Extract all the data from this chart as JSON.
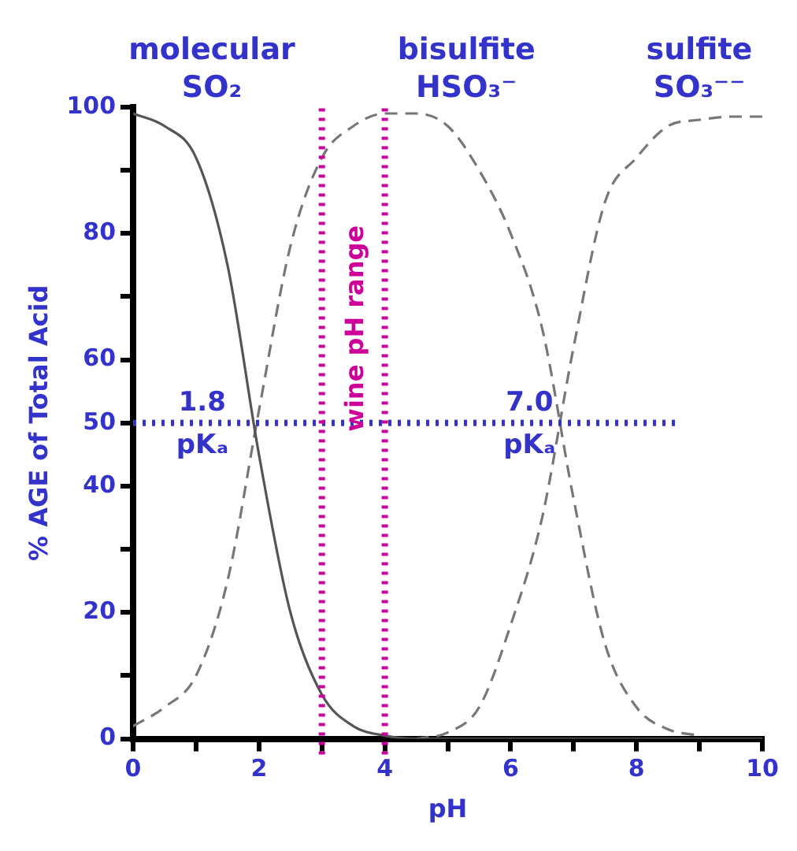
{
  "chart_data": {
    "type": "line",
    "xlabel": "pH",
    "ylabel": "% AGE of Total Acid",
    "x": [
      0,
      0.5,
      1,
      1.5,
      2,
      2.5,
      3,
      3.5,
      4,
      4.5,
      5,
      5.5,
      6,
      6.5,
      7,
      7.5,
      8,
      8.5,
      9,
      9.5,
      10
    ],
    "series": [
      {
        "name": "molecular\nSO₂",
        "color": "#555555",
        "line_style": "solid",
        "values": [
          99,
          97,
          92,
          75,
          45,
          20,
          7,
          2,
          0.5,
          0,
          0,
          0,
          0,
          0,
          0,
          0,
          0,
          0,
          0,
          0,
          0
        ]
      },
      {
        "name": "bisulfite\nHSO₃⁻",
        "color": "#777777",
        "line_style": "dashed",
        "values": [
          2,
          5,
          10,
          25,
          52,
          78,
          92,
          97,
          99,
          99,
          97,
          90,
          80,
          65,
          38,
          15,
          5,
          1.5,
          0.5,
          null,
          null
        ]
      },
      {
        "name": "sulfite\nSO₃⁻⁻",
        "color": "#777777",
        "line_style": "dashed",
        "values": [
          null,
          null,
          null,
          null,
          null,
          null,
          null,
          null,
          null,
          0,
          1,
          5,
          18,
          35,
          62,
          85,
          92,
          97,
          98,
          98.5,
          98.5
        ]
      }
    ],
    "xlim": [
      0,
      10
    ],
    "xticks": [
      0,
      {
        "value": 1,
        "label": null
      },
      2,
      {
        "value": 3,
        "label": null
      },
      4,
      {
        "value": 5,
        "label": null
      },
      6,
      {
        "value": 7,
        "label": null
      },
      8,
      {
        "value": 9,
        "label": null
      },
      10
    ],
    "ylim": [
      0,
      100
    ],
    "yticks": [
      0,
      {
        "value": 10,
        "label": null
      },
      20,
      {
        "value": 30,
        "label": null
      },
      40,
      50,
      60,
      {
        "value": 70,
        "label": null
      },
      80,
      {
        "value": 90,
        "label": null
      },
      100
    ],
    "ref_lines": [
      {
        "axis": "y",
        "value": 50,
        "color": "#3333cc",
        "line_style": "dotted"
      },
      {
        "axis": "x",
        "value": 3,
        "color": "#cc0099",
        "line_style": "dotted",
        "label": "wine pH range"
      },
      {
        "axis": "x",
        "value": 4,
        "color": "#cc0099",
        "line_style": "dotted"
      }
    ],
    "annotations": [
      {
        "text": "1.8\npKₐ",
        "x": 1.8,
        "y": 50
      },
      {
        "text": "7.0\npKₐ",
        "x": 7,
        "y": 50
      }
    ],
    "grid": false,
    "legend": false,
    "marker": "none"
  }
}
